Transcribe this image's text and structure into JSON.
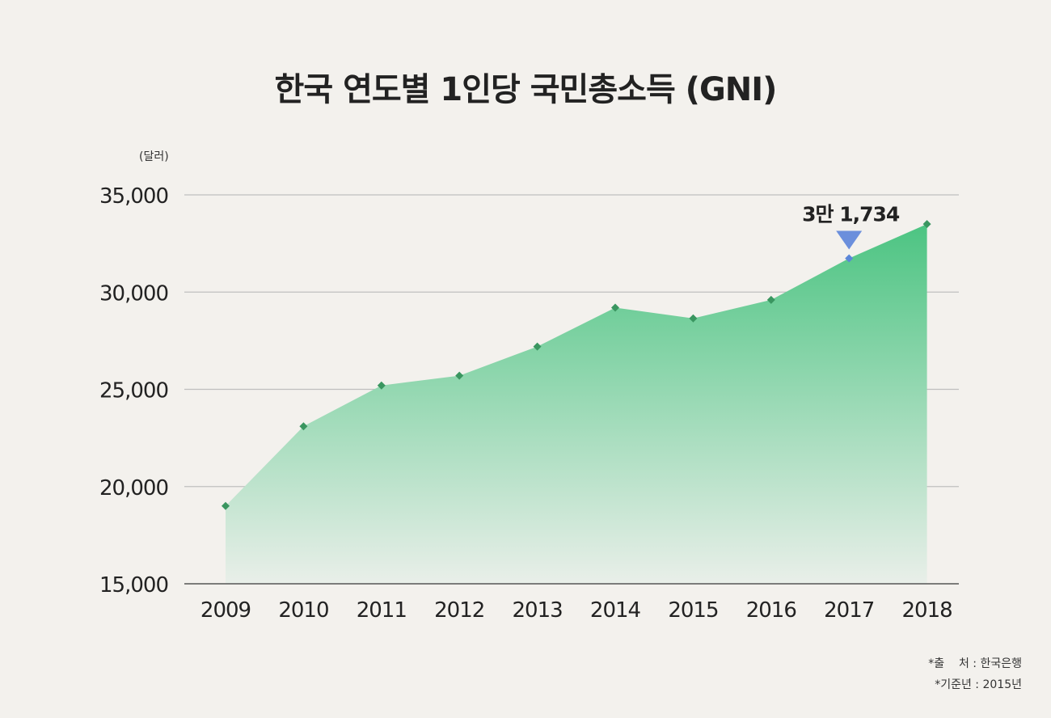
{
  "chart_data": {
    "type": "area",
    "title": "한국 연도별 1인당 국민총소득 (GNI)",
    "ylabel": "(달러)",
    "xlabel": "",
    "x": [
      "2009",
      "2010",
      "2011",
      "2012",
      "2013",
      "2014",
      "2015",
      "2016",
      "2017",
      "2018"
    ],
    "series": [
      {
        "values": [
          19000,
          23100,
          25200,
          25700,
          27200,
          29200,
          28650,
          29600,
          31734,
          33500
        ]
      }
    ],
    "ylim": [
      15000,
      35000
    ],
    "yticks": [
      15000,
      20000,
      25000,
      30000,
      35000
    ],
    "ytick_labels": [
      "15,000",
      "20,000",
      "25,000",
      "30,000",
      "35,000"
    ],
    "grid": true,
    "annotation": {
      "x": "2017",
      "text": "3만 1,734"
    },
    "colors": {
      "area_top": "#4cc482",
      "area_bottom": "#e9efe9",
      "marker": "#3a9660",
      "highlight_marker": "#5b86d8",
      "highlight_arrow": "#6b8fdc",
      "gridline": "#bfbfbf",
      "axis": "#555555"
    }
  },
  "footnotes": {
    "source": "*출    처 : 한국은행",
    "base_year": "*기준년 : 2015년"
  }
}
